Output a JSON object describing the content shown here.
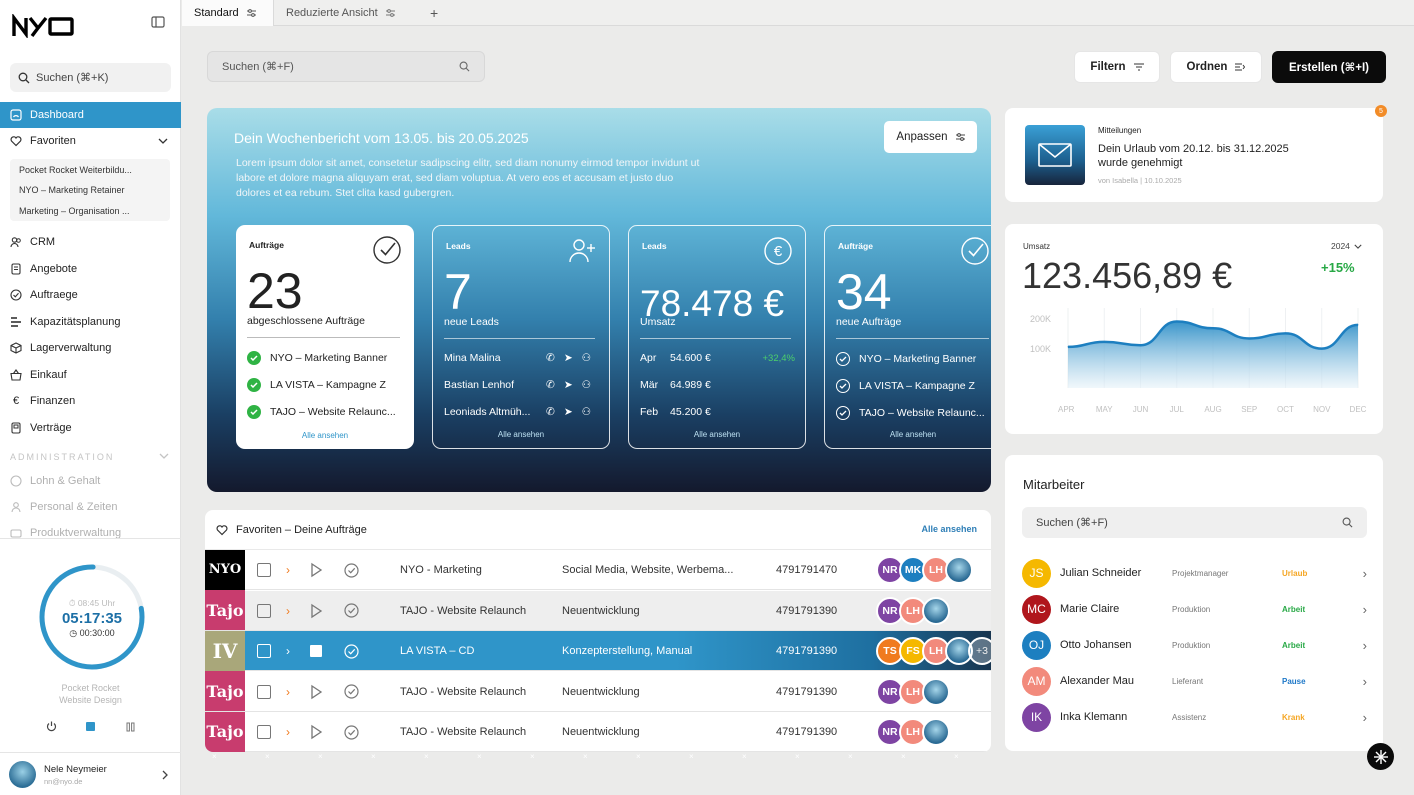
{
  "app": {
    "logo_text": "NYO"
  },
  "sidebar": {
    "search_label": "Suchen (⌘+K)",
    "items": [
      {
        "label": "Dashboard",
        "icon": "dashboard-icon",
        "active": true
      },
      {
        "label": "Favoriten",
        "icon": "heart-icon"
      },
      {
        "label": "CRM",
        "icon": "users-icon"
      },
      {
        "label": "Angebote",
        "icon": "document-icon"
      },
      {
        "label": "Auftraege",
        "icon": "check-circle-icon"
      },
      {
        "label": "Kapazitätsplanung",
        "icon": "bars-icon"
      },
      {
        "label": "Lagerverwaltung",
        "icon": "box-icon"
      },
      {
        "label": "Einkauf",
        "icon": "basket-icon"
      },
      {
        "label": "Finanzen",
        "icon": "euro-icon"
      },
      {
        "label": "Verträge",
        "icon": "contract-icon"
      }
    ],
    "favorites": [
      "Pocket Rocket Weiterbildu...",
      "NYO – Marketing Retainer",
      "Marketing – Organisation ..."
    ],
    "admin_label": "ADMINISTRATION",
    "admin_items": [
      "Lohn & Gehalt",
      "Personal & Zeiten",
      "Produktverwaltung"
    ],
    "timer": {
      "start": "08:45 Uhr",
      "elapsed": "05:17:35",
      "break": "00:30:00",
      "project_line1": "Pocket Rocket",
      "project_line2": "Website Design",
      "progress": 0.78
    },
    "user": {
      "name": "Nele Neymeier",
      "email": "nn@nyo.de"
    }
  },
  "tabs": [
    {
      "label": "Standard",
      "active": true
    },
    {
      "label": "Reduzierte Ansicht",
      "active": false
    }
  ],
  "toolbar": {
    "search_label": "Suchen (⌘+F)",
    "filter_label": "Filtern",
    "sort_label": "Ordnen",
    "create_label": "Erstellen (⌘+I)"
  },
  "weekly": {
    "title": "Dein Wochenbericht vom 13.05. bis 20.05.2025",
    "text": "Lorem ipsum dolor sit amet, consetetur sadipscing elitr, sed diam nonumy eirmod tempor invidunt ut labore et dolore magna aliquyam erat, sed diam voluptua. At vero eos et accusam et justo duo dolores et ea rebum. Stet clita kasd gubergren.",
    "adjust_label": "Anpassen",
    "see_all": "Alle ansehen",
    "cards": [
      {
        "label": "Aufträge",
        "big": "23",
        "sub": "abgeschlossene Aufträge",
        "rows": [
          "NYO – Marketing Banner",
          "LA VISTA – Kampagne Z",
          "TAJO – Website Relaunc..."
        ]
      },
      {
        "label": "Leads",
        "big": "7",
        "sub": "neue Leads",
        "rows": [
          "Mina Malina",
          "Bastian Lenhof",
          "Leoniads Altmüh..."
        ]
      },
      {
        "label": "Leads",
        "big": "78.478 €",
        "sub": "Umsatz",
        "rows": [
          {
            "month": "Apr",
            "value": "54.600 €",
            "delta": "+32,4%"
          },
          {
            "month": "Mär",
            "value": "64.989 €",
            "delta": ""
          },
          {
            "month": "Feb",
            "value": "45.200 €",
            "delta": ""
          }
        ]
      },
      {
        "label": "Aufträge",
        "big": "34",
        "sub": "neue Aufträge",
        "rows": [
          "NYO – Marketing Banner",
          "LA VISTA – Kampagne Z",
          "TAJO – Website Relaunc..."
        ]
      }
    ]
  },
  "favorites_table": {
    "title": "Favoriten – Deine Aufträge",
    "see_all": "Alle ansehen",
    "rows": [
      {
        "thumb": "NYO",
        "thumb_color": "#000000",
        "name": "NYO - Marketing",
        "category": "Social Media, Website, Werbema...",
        "number": "4791791470",
        "avatars": [
          "NR",
          "MK",
          "LH",
          "photo"
        ],
        "more": ""
      },
      {
        "thumb": "Tajo",
        "thumb_color": "#c83c6e",
        "name": "TAJO - Website Relaunch",
        "category": "Neuentwicklung",
        "number": "4791791390",
        "avatars": [
          "NR",
          "LH",
          "photo"
        ],
        "more": ""
      },
      {
        "thumb": "IV",
        "thumb_color": "#a9a77a",
        "name": "LA VISTA – CD",
        "category": "Konzepterstellung, Manual",
        "number": "4791791390",
        "avatars": [
          "TS",
          "FS",
          "LH",
          "photo"
        ],
        "more": "+3"
      },
      {
        "thumb": "Tajo",
        "thumb_color": "#c83c6e",
        "name": "TAJO - Website Relaunch",
        "category": "Neuentwicklung",
        "number": "4791791390",
        "avatars": [
          "NR",
          "LH",
          "photo"
        ],
        "more": ""
      },
      {
        "thumb": "Tajo",
        "thumb_color": "#c83c6e",
        "name": "TAJO - Website Relaunch",
        "category": "Neuentwicklung",
        "number": "4791791390",
        "avatars": [
          "NR",
          "LH",
          "photo"
        ],
        "more": ""
      }
    ]
  },
  "notification": {
    "heading": "Mitteilungen",
    "text": "Dein Urlaub vom 20.12. bis 31.12.2025 wurde genehmigt",
    "meta": "von Isabella | 10.10.2025",
    "badge": "5"
  },
  "revenue": {
    "label": "Umsatz",
    "year": "2024",
    "amount": "123.456,89 €",
    "delta": "+15%"
  },
  "chart_data": {
    "type": "area",
    "categories": [
      "APR",
      "MAY",
      "JUN",
      "JUL",
      "AUG",
      "SEP",
      "OCT",
      "NOV",
      "DEC"
    ],
    "values": [
      145,
      160,
      150,
      220,
      200,
      170,
      185,
      140,
      210
    ],
    "y_ticks": [
      "200K",
      "100K"
    ],
    "ylim": [
      0,
      260
    ],
    "color": "#2f8fc7"
  },
  "team": {
    "title": "Mitarbeiter",
    "search_label": "Suchen (⌘+F)",
    "members": [
      {
        "initials": "JS",
        "color": "#f5b800",
        "name": "Julian Schneider",
        "role": "Projektmanager",
        "status": "Urlaub",
        "status_color": "#f5a623"
      },
      {
        "initials": "MC",
        "color": "#b0161c",
        "name": "Marie Claire",
        "role": "Produktion",
        "status": "Arbeit",
        "status_color": "#27a845"
      },
      {
        "initials": "OJ",
        "color": "#1d7fc0",
        "name": "Otto Johansen",
        "role": "Produktion",
        "status": "Arbeit",
        "status_color": "#27a845"
      },
      {
        "initials": "AM",
        "color": "#f28a7c",
        "name": "Alexander Mau",
        "role": "Lieferant",
        "status": "Pause",
        "status_color": "#1e78c8"
      },
      {
        "initials": "IK",
        "color": "#7e44a3",
        "name": "Inka Klemann",
        "role": "Assistenz",
        "status": "Krank",
        "status_color": "#f5a623"
      }
    ]
  },
  "colors": {
    "accent": "#2f95c9",
    "dark": "#0b0b0b"
  }
}
